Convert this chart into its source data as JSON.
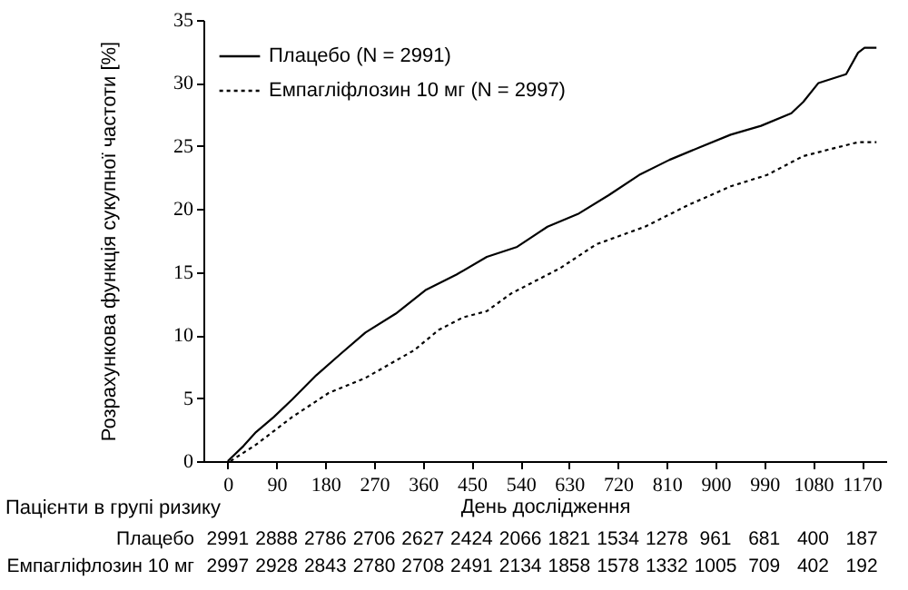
{
  "chart_data": {
    "type": "line",
    "xlabel": "День дослідження",
    "ylabel": "Розрахункова функція сукупної частоти [%]",
    "xlim": [
      -45,
      1215
    ],
    "ylim": [
      0,
      35
    ],
    "xticks": [
      0,
      90,
      180,
      270,
      360,
      450,
      540,
      630,
      720,
      810,
      900,
      990,
      1080,
      1170
    ],
    "yticks": [
      0,
      5,
      10,
      15,
      20,
      25,
      30,
      35
    ],
    "legend": "top left",
    "grid": false,
    "series": [
      {
        "name": "Плацебо (N = 2991)",
        "color": "#000000",
        "line_style": "solid",
        "x": [
          0,
          29,
          52,
          85,
          119,
          163,
          208,
          254,
          310,
          366,
          422,
          478,
          534,
          590,
          646,
          703,
          759,
          815,
          871,
          928,
          984,
          1040,
          1062,
          1090,
          1141,
          1163,
          1175,
          1197
        ],
        "values": [
          0,
          1.2,
          2.3,
          3.5,
          4.9,
          6.8,
          8.5,
          10.2,
          11.7,
          13.6,
          14.8,
          16.2,
          17.0,
          18.6,
          19.6,
          21.1,
          22.7,
          23.9,
          24.9,
          25.9,
          26.6,
          27.6,
          28.5,
          30.0,
          30.7,
          32.4,
          32.8,
          32.8
        ]
      },
      {
        "name": "Емпагліфлозин 10 мг (N = 2997)",
        "color": "#000000",
        "line_style": "dotted",
        "x": [
          5,
          52,
          119,
          186,
          254,
          344,
          389,
          434,
          478,
          523,
          613,
          680,
          770,
          849,
          928,
          995,
          1062,
          1107,
          1163,
          1197
        ],
        "values": [
          0,
          1.3,
          3.5,
          5.4,
          6.6,
          8.8,
          10.4,
          11.4,
          11.9,
          13.3,
          15.3,
          17.2,
          18.6,
          20.3,
          21.8,
          22.7,
          24.2,
          24.7,
          25.3,
          25.3
        ]
      }
    ],
    "annotations": [
      "Пацієнти в групі ризику",
      "Плацебо",
      "Емпагліфлозин 10 мг",
      "2991",
      "2888",
      "2786",
      "2706",
      "2627",
      "2424",
      "2066",
      "1821",
      "1534",
      "1278",
      "961",
      "681",
      "400",
      "187",
      "2997",
      "2928",
      "2843",
      "2780",
      "2708",
      "2491",
      "2134",
      "1858",
      "1578",
      "1332",
      "1005",
      "709",
      "402",
      "192"
    ]
  }
}
